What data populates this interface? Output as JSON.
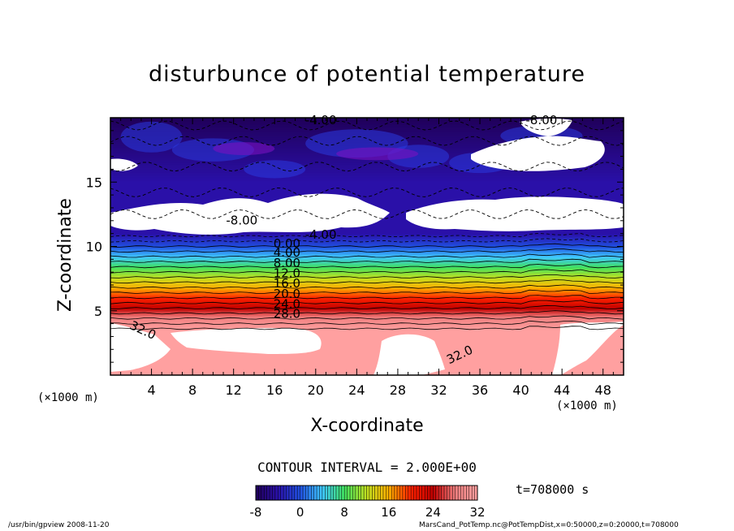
{
  "chart_data": {
    "type": "heatmap",
    "title": "disturbunce of potential temperature",
    "xlabel": "X-coordinate",
    "ylabel": "Z-coordinate",
    "x_unit": "(×1000 m)",
    "xlim": [
      0,
      50
    ],
    "ylim": [
      0,
      20
    ],
    "x_ticks": [
      "4",
      "8",
      "12",
      "16",
      "20",
      "24",
      "28",
      "32",
      "36",
      "40",
      "44",
      "48"
    ],
    "y_ticks": [
      "5",
      "10",
      "15"
    ],
    "contour_labels": [
      "-8.00",
      "-4.00",
      "0.00",
      "4.00",
      "8.00",
      "12.0",
      "16.0",
      "20.0",
      "24.0",
      "28.0",
      "32.0"
    ],
    "contour_interval": "CONTOUR INTERVAL = 2.000E+00",
    "time": "t=708000 s",
    "colorbar": {
      "min": -8,
      "max": 32,
      "ticks": [
        "-8",
        "0",
        "8",
        "16",
        "24",
        "32"
      ],
      "colors": [
        "#20005a",
        "#2a10a8",
        "#2050e0",
        "#40c8ff",
        "#40e060",
        "#c0e020",
        "#ffb000",
        "#ff2000",
        "#c00000",
        "#f08080",
        "#ffa0a0"
      ]
    },
    "levels": [
      {
        "z": 3.5,
        "value": 32
      },
      {
        "z": 4.0,
        "value": 30
      },
      {
        "z": 4.5,
        "value": 28
      },
      {
        "z": 5.2,
        "value": 24
      },
      {
        "z": 6.0,
        "value": 20
      },
      {
        "z": 6.8,
        "value": 16
      },
      {
        "z": 7.6,
        "value": 12
      },
      {
        "z": 8.4,
        "value": 8
      },
      {
        "z": 9.2,
        "value": 4
      },
      {
        "z": 10.0,
        "value": 0
      },
      {
        "z": 11.0,
        "value": -4
      },
      {
        "z": 15.0,
        "value": -4
      },
      {
        "z": 20.0,
        "value": -8
      }
    ],
    "footer_left": "/usr/bin/gpview   2008-11-20",
    "footer_right": "MarsCand_PotTemp.nc@PotTempDist,x=0:50000,z=0:20000,t=708000"
  }
}
